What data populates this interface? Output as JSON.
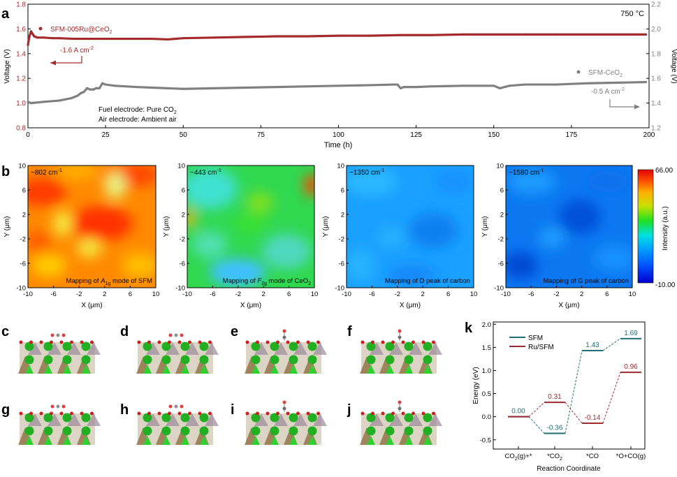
{
  "panel_labels": {
    "a": "a",
    "b": "b",
    "c": "c",
    "d": "d",
    "e": "e",
    "f": "f",
    "g": "g",
    "h": "h",
    "i": "i",
    "j": "j",
    "k": "k"
  },
  "panel_a": {
    "temperature": "750 °C",
    "legend_sfm_ru": "SFM-005Ru@CeO",
    "legend_sfm_ceo2": "SFM-CeO",
    "sub2": "2",
    "current_ru": "-1.6 A cm",
    "current_ceo2": "-0.5 A cm",
    "sup_minus2": "-2",
    "fuel_electrode": "Fuel electrode: Pure CO",
    "air_electrode": "Air electrode: Ambient air"
  },
  "panel_b": {
    "maps": [
      {
        "peak": "~802 cm",
        "caption_pre": "Mapping of ",
        "mode": "A",
        "mode_sub": "1g",
        "caption_post": " mode of SFM"
      },
      {
        "peak": "~443 cm",
        "caption_pre": "Mapping of ",
        "mode": "F",
        "mode_sub": "2g",
        "caption_post": " mode of CeO"
      },
      {
        "peak": "~1350 cm",
        "caption_pre": "Mapping of D peak of carbon",
        "mode": "",
        "mode_sub": "",
        "caption_post": ""
      },
      {
        "peak": "~1580 cm",
        "caption_pre": "Mapping of G peak of carbon",
        "mode": "",
        "mode_sub": "",
        "caption_post": ""
      }
    ],
    "sup_minus1": "-1",
    "xlabel": "X (μm)",
    "ylabel": "Y (μm)",
    "ticks": [
      "-10",
      "-6",
      "-2",
      "2",
      "6",
      "10"
    ],
    "colorbar_label": "Intensity (a.u.)",
    "colorbar_max": "66.00",
    "colorbar_min": "-10.00"
  },
  "chart_data": [
    {
      "type": "line",
      "panel": "a",
      "xlabel": "Time (h)",
      "ylabel": "Voltage (V)",
      "y2label": "Voltage (V)",
      "xlim": [
        0,
        200
      ],
      "ylim": [
        0.8,
        1.8
      ],
      "y2lim": [
        1.2,
        2.2
      ],
      "xticks": [
        0,
        25,
        50,
        75,
        100,
        125,
        150,
        175,
        200
      ],
      "yticks": [
        0.8,
        1.0,
        1.2,
        1.4,
        1.6,
        1.8
      ],
      "y2ticks": [
        1.2,
        1.4,
        1.6,
        1.8,
        2.0,
        2.2
      ],
      "series": [
        {
          "name": "SFM-005Ru@CeO2",
          "axis": "left",
          "color": "#a52a2a",
          "x": [
            0,
            0.3,
            0.6,
            1,
            1.5,
            2,
            3,
            5,
            8,
            10,
            15,
            20,
            25,
            30,
            40,
            45,
            50,
            60,
            70,
            80,
            90,
            100,
            110,
            120,
            130,
            140,
            150,
            160,
            170,
            180,
            190,
            199
          ],
          "y": [
            1.47,
            1.52,
            1.55,
            1.58,
            1.56,
            1.54,
            1.53,
            1.53,
            1.525,
            1.525,
            1.52,
            1.52,
            1.52,
            1.52,
            1.52,
            1.515,
            1.525,
            1.53,
            1.535,
            1.54,
            1.54,
            1.545,
            1.545,
            1.55,
            1.55,
            1.555,
            1.555,
            1.555,
            1.555,
            1.555,
            1.555,
            1.555
          ]
        },
        {
          "name": "SFM-CeO2",
          "axis": "left",
          "color": "#808080",
          "x": [
            0,
            1,
            5,
            10,
            14,
            16,
            17,
            18,
            19,
            20,
            21,
            22,
            23,
            24,
            25,
            28,
            35,
            40,
            45,
            50,
            60,
            70,
            80,
            90,
            100,
            110,
            118,
            119,
            120,
            121,
            125,
            130,
            140,
            150,
            152,
            155,
            160,
            170,
            180,
            190,
            199
          ],
          "y": [
            1.01,
            1.0,
            1.01,
            1.02,
            1.04,
            1.06,
            1.08,
            1.09,
            1.12,
            1.11,
            1.11,
            1.12,
            1.12,
            1.16,
            1.15,
            1.14,
            1.13,
            1.125,
            1.12,
            1.115,
            1.12,
            1.125,
            1.13,
            1.135,
            1.14,
            1.145,
            1.15,
            1.15,
            1.12,
            1.13,
            1.13,
            1.135,
            1.14,
            1.14,
            1.12,
            1.14,
            1.15,
            1.15,
            1.16,
            1.165,
            1.17
          ]
        }
      ]
    },
    {
      "type": "line",
      "panel": "k",
      "xlabel": "Reaction Coordinate",
      "ylabel": "Energy (eV)",
      "categories": [
        "CO2(g)+*",
        "*CO2",
        "*CO",
        "*O+CO(g)"
      ],
      "category_labels": [
        "CO",
        "(g)+*",
        "*CO",
        "*CO",
        "*O+CO(g)"
      ],
      "ylim": [
        -0.7,
        2.05
      ],
      "yticks": [
        -0.5,
        0.0,
        0.5,
        1.0,
        1.5,
        2.0
      ],
      "series": [
        {
          "name": "SFM",
          "color": "#1f6f74",
          "values": [
            0.0,
            -0.36,
            1.43,
            1.69
          ],
          "labels": [
            "0.00",
            "-0.36",
            "1.43",
            "1.69"
          ]
        },
        {
          "name": "Ru/SFM",
          "color": "#9b2a33",
          "values": [
            0.0,
            0.31,
            -0.14,
            0.96
          ],
          "labels": [
            "0.00",
            "0.31",
            "-0.14",
            "0.96"
          ]
        }
      ]
    }
  ]
}
